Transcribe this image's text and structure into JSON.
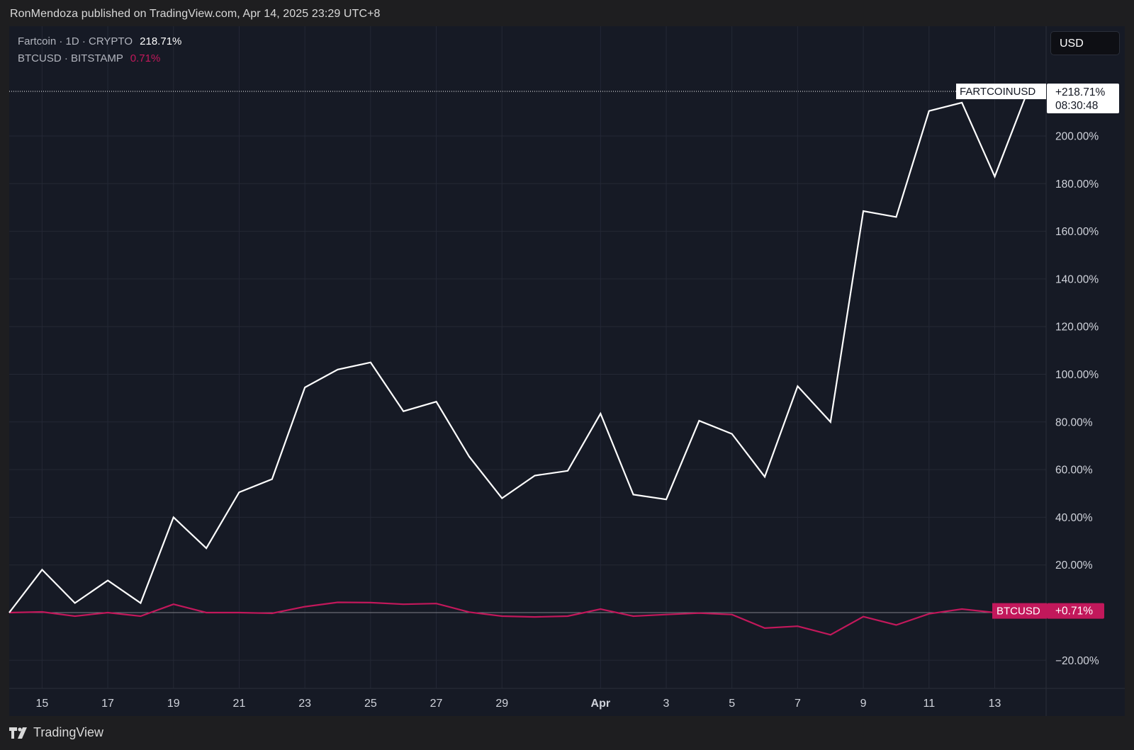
{
  "header": {
    "published_text": "RonMendoza published on TradingView.com, Apr 14, 2025 23:29 UTC+8"
  },
  "legend": [
    {
      "label": "Fartcoin · 1D · CRYPTO",
      "value": "218.71%",
      "color": "#ffffff"
    },
    {
      "label": "BTCUSD · BITSTAMP",
      "value": "0.71%",
      "color": "#c2185b"
    }
  ],
  "currency_button": {
    "label": "USD"
  },
  "footer": {
    "brand": "TradingView"
  },
  "chart_data": {
    "type": "line",
    "x": [
      "Mar 14",
      "Mar 15",
      "Mar 16",
      "Mar 17",
      "Mar 18",
      "Mar 19",
      "Mar 20",
      "Mar 21",
      "Mar 22",
      "Mar 23",
      "Mar 24",
      "Mar 25",
      "Mar 26",
      "Mar 27",
      "Mar 28",
      "Mar 29",
      "Mar 30",
      "Mar 31",
      "Apr 1",
      "Apr 2",
      "Apr 3",
      "Apr 4",
      "Apr 5",
      "Apr 6",
      "Apr 7",
      "Apr 8",
      "Apr 9",
      "Apr 10",
      "Apr 11",
      "Apr 12",
      "Apr 13",
      "Apr 14"
    ],
    "series": [
      {
        "name": "FARTCOINUSD",
        "color": "#ffffff",
        "values": [
          0,
          18,
          4,
          13.5,
          4,
          40,
          27,
          50.5,
          56,
          94.5,
          102,
          105,
          84.5,
          88.5,
          65.5,
          48,
          57.5,
          59.5,
          83.5,
          49.5,
          47.5,
          80.5,
          75,
          57,
          95,
          80,
          168.5,
          166,
          210.5,
          214,
          183,
          218.71
        ]
      },
      {
        "name": "BTCUSD",
        "color": "#c2185b",
        "values": [
          0,
          0.3,
          -1.5,
          0,
          -1.5,
          3.5,
          0,
          0,
          -0.3,
          2.5,
          4.3,
          4.2,
          3.5,
          3.8,
          0.2,
          -1.5,
          -1.8,
          -1.5,
          1.5,
          -1.5,
          -0.8,
          -0.2,
          -0.8,
          -6.5,
          -5.7,
          -9.3,
          -1.7,
          -5.2,
          -0.5,
          1.5,
          0,
          0.71
        ]
      }
    ],
    "x_tick_labels": [
      "15",
      "17",
      "19",
      "21",
      "23",
      "25",
      "27",
      "29",
      "Apr",
      "3",
      "5",
      "7",
      "9",
      "11",
      "13"
    ],
    "x_tick_dates": [
      "Mar 15",
      "Mar 17",
      "Mar 19",
      "Mar 21",
      "Mar 23",
      "Mar 25",
      "Mar 27",
      "Mar 29",
      "Apr 1",
      "Apr 3",
      "Apr 5",
      "Apr 7",
      "Apr 9",
      "Apr 11",
      "Apr 13"
    ],
    "y_ticks": [
      -20,
      20,
      40,
      60,
      80,
      100,
      120,
      140,
      160,
      180,
      200
    ],
    "y_tick_labels": [
      "−20.00%",
      "20.00%",
      "40.00%",
      "60.00%",
      "80.00%",
      "100.00%",
      "120.00%",
      "140.00%",
      "160.00%",
      "180.00%",
      "200.00%"
    ],
    "ylim": [
      -32,
      240
    ],
    "grid": true,
    "price_labels": [
      {
        "series": "FARTCOINUSD",
        "name": "FARTCOINUSD",
        "value": "+218.71%",
        "countdown": "08:30:48",
        "color": "#ffffff"
      },
      {
        "series": "BTCUSD",
        "name": "BTCUSD",
        "value": "+0.71%",
        "color": "#c2185b"
      }
    ]
  }
}
